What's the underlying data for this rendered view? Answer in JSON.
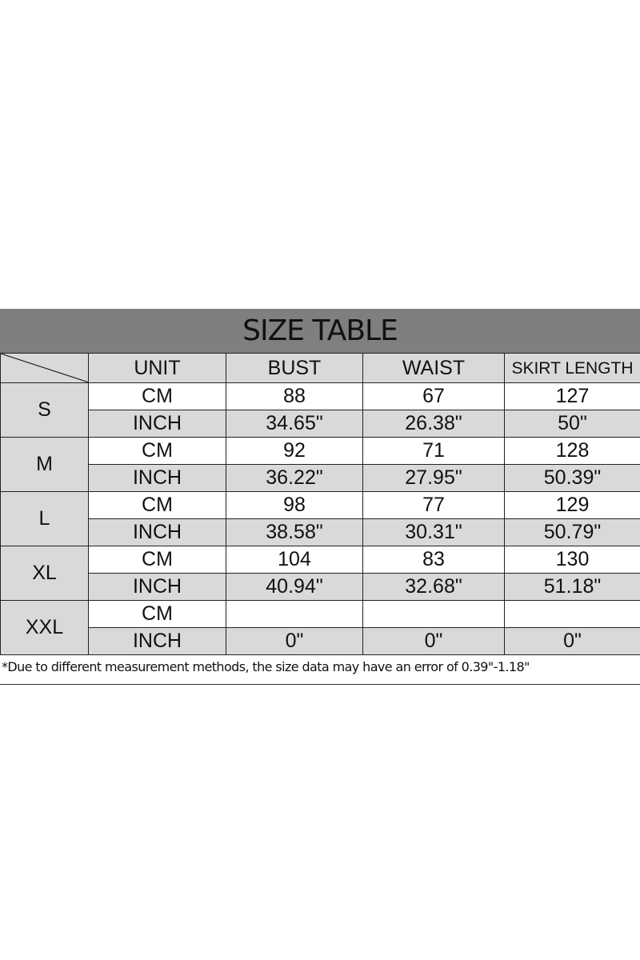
{
  "title": "SIZE TABLE",
  "headers": [
    "UNIT",
    "BUST",
    "WAIST",
    "SKIRT LENGTH"
  ],
  "rows": [
    {
      "size": "S",
      "cm": {
        "unit": "CM",
        "values": [
          "88",
          "67",
          "127"
        ]
      },
      "inch": {
        "unit": "INCH",
        "values": [
          "34.65\"",
          "26.38\"",
          "50\""
        ]
      }
    },
    {
      "size": "M",
      "cm": {
        "unit": "CM",
        "values": [
          "92",
          "71",
          "128"
        ]
      },
      "inch": {
        "unit": "INCH",
        "values": [
          "36.22\"",
          "27.95\"",
          "50.39\""
        ]
      }
    },
    {
      "size": "L",
      "cm": {
        "unit": "CM",
        "values": [
          "98",
          "77",
          "129"
        ]
      },
      "inch": {
        "unit": "INCH",
        "values": [
          "38.58\"",
          "30.31\"",
          "50.79\""
        ]
      }
    },
    {
      "size": "XL",
      "cm": {
        "unit": "CM",
        "values": [
          "104",
          "83",
          "130"
        ]
      },
      "inch": {
        "unit": "INCH",
        "values": [
          "40.94\"",
          "32.68\"",
          "51.18\""
        ]
      }
    },
    {
      "size": "XXL",
      "cm": {
        "unit": "CM",
        "values": [
          "",
          "",
          ""
        ]
      },
      "inch": {
        "unit": "INCH",
        "values": [
          "0\"",
          "0\"",
          "0\""
        ]
      }
    }
  ],
  "note": "*Due to different measurement methods, the size data may have an error of 0.39\"-1.18\""
}
